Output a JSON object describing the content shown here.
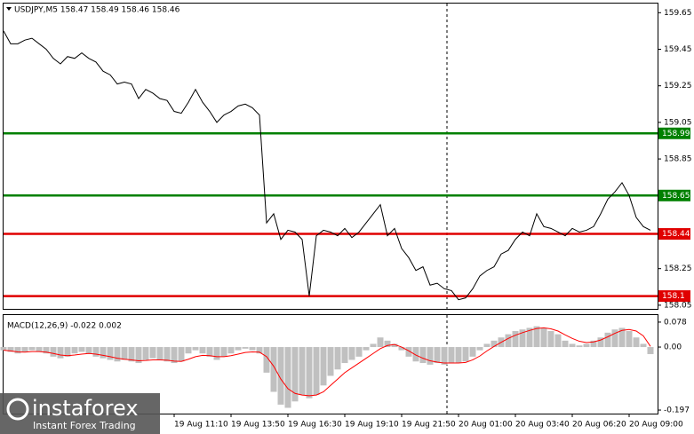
{
  "chart_data": [
    {
      "type": "line",
      "title": "USDJPY,M5  158.47 158.49 158.46 158.46",
      "color": "#000000",
      "categories": [
        null,
        null,
        null,
        null,
        null,
        null,
        null,
        null,
        null,
        null,
        null,
        null,
        null,
        null,
        null,
        null,
        null,
        null,
        null,
        null,
        null,
        null,
        null,
        null,
        "19 Aug 11:10",
        null,
        null,
        null,
        null,
        null,
        null,
        null,
        "19 Aug 13:50",
        null,
        null,
        null,
        null,
        null,
        null,
        null,
        "19 Aug 16:30",
        null,
        null,
        null,
        null,
        null,
        null,
        null,
        "19 Aug 19:10",
        null,
        null,
        null,
        null,
        null,
        null,
        null,
        "19 Aug 21:50",
        null,
        null,
        null,
        null,
        null,
        null,
        null,
        "20 Aug 01:00",
        null,
        null,
        null,
        null,
        null,
        null,
        null,
        "20 Aug 03:40",
        null,
        null,
        null,
        null,
        null,
        null,
        null,
        "20 Aug 06:20",
        null,
        null,
        null,
        null,
        null,
        null,
        null,
        "20 Aug 09:00",
        null,
        null,
        null
      ],
      "values": [
        159.55,
        159.48,
        159.48,
        159.5,
        159.51,
        159.48,
        159.45,
        159.4,
        159.37,
        159.41,
        159.4,
        159.43,
        159.4,
        159.38,
        159.33,
        159.31,
        159.26,
        159.27,
        159.26,
        159.18,
        159.23,
        159.21,
        159.18,
        159.17,
        159.11,
        159.1,
        159.16,
        159.23,
        159.16,
        159.11,
        159.05,
        159.09,
        159.11,
        159.14,
        159.15,
        159.13,
        159.09,
        158.5,
        158.55,
        158.41,
        158.46,
        158.45,
        158.41,
        158.1,
        158.43,
        158.46,
        158.45,
        158.43,
        158.47,
        158.42,
        158.45,
        158.5,
        158.55,
        158.6,
        158.43,
        158.47,
        158.36,
        158.31,
        158.24,
        158.26,
        158.16,
        158.17,
        158.14,
        158.13,
        158.08,
        158.09,
        158.14,
        158.21,
        158.24,
        158.26,
        158.33,
        158.35,
        158.41,
        158.45,
        158.43,
        158.55,
        158.48,
        158.47,
        158.45,
        158.43,
        158.47,
        158.45,
        158.46,
        158.48,
        158.55,
        158.63,
        158.67,
        158.72,
        158.65,
        158.53,
        158.48,
        158.46
      ],
      "ylim": [
        158.03,
        159.7
      ],
      "yticks": [
        159.65,
        159.45,
        159.25,
        159.05,
        158.85,
        158.25,
        158.05
      ],
      "levels": [
        {
          "value": 158.99,
          "color": "#008000"
        },
        {
          "value": 158.65,
          "color": "#008000"
        },
        {
          "value": 158.44,
          "color": "#e00000"
        },
        {
          "value": 158.1,
          "color": "#e00000"
        }
      ]
    },
    {
      "type": "macd",
      "title": "MACD(12,26,9) -0.022 0.002",
      "color": "#c0c0c0",
      "signal_color": "#ff0000",
      "values": [
        -0.01,
        -0.015,
        -0.02,
        -0.015,
        -0.01,
        -0.015,
        -0.02,
        -0.03,
        -0.035,
        -0.03,
        -0.02,
        -0.015,
        -0.02,
        -0.03,
        -0.035,
        -0.04,
        -0.045,
        -0.04,
        -0.045,
        -0.05,
        -0.04,
        -0.035,
        -0.04,
        -0.045,
        -0.05,
        -0.045,
        -0.02,
        -0.01,
        -0.02,
        -0.03,
        -0.04,
        -0.03,
        -0.02,
        -0.01,
        -0.005,
        -0.01,
        -0.02,
        -0.08,
        -0.14,
        -0.18,
        -0.19,
        -0.17,
        -0.15,
        -0.16,
        -0.15,
        -0.12,
        -0.09,
        -0.07,
        -0.05,
        -0.04,
        -0.03,
        -0.01,
        0.01,
        0.03,
        0.02,
        0.01,
        -0.01,
        -0.03,
        -0.045,
        -0.05,
        -0.055,
        -0.05,
        -0.055,
        -0.05,
        -0.05,
        -0.045,
        -0.03,
        -0.01,
        0.01,
        0.02,
        0.03,
        0.04,
        0.05,
        0.055,
        0.06,
        0.065,
        0.06,
        0.05,
        0.04,
        0.02,
        0.01,
        0.005,
        0.01,
        0.02,
        0.03,
        0.045,
        0.055,
        0.06,
        0.05,
        0.03,
        0.01,
        -0.022
      ],
      "signal": [
        -0.01,
        -0.012,
        -0.015,
        -0.016,
        -0.014,
        -0.014,
        -0.016,
        -0.02,
        -0.025,
        -0.027,
        -0.025,
        -0.022,
        -0.02,
        -0.022,
        -0.026,
        -0.03,
        -0.035,
        -0.038,
        -0.04,
        -0.043,
        -0.042,
        -0.04,
        -0.04,
        -0.041,
        -0.044,
        -0.045,
        -0.038,
        -0.03,
        -0.026,
        -0.027,
        -0.03,
        -0.03,
        -0.027,
        -0.022,
        -0.017,
        -0.015,
        -0.016,
        -0.03,
        -0.06,
        -0.1,
        -0.13,
        -0.145,
        -0.15,
        -0.152,
        -0.15,
        -0.14,
        -0.12,
        -0.1,
        -0.08,
        -0.065,
        -0.05,
        -0.035,
        -0.02,
        -0.005,
        0.005,
        0.008,
        0.0,
        -0.012,
        -0.025,
        -0.035,
        -0.043,
        -0.047,
        -0.05,
        -0.05,
        -0.05,
        -0.048,
        -0.04,
        -0.028,
        -0.012,
        0.002,
        0.015,
        0.027,
        0.037,
        0.045,
        0.052,
        0.058,
        0.06,
        0.057,
        0.05,
        0.038,
        0.027,
        0.018,
        0.014,
        0.016,
        0.022,
        0.032,
        0.043,
        0.052,
        0.055,
        0.05,
        0.035,
        0.002
      ],
      "ylim": [
        -0.208,
        0.1
      ],
      "yticks": [
        0.078,
        {
          "value": 0,
          "label": "0.00"
        },
        -0.197
      ]
    }
  ],
  "watermark": {
    "brand": "instaforex",
    "tagline": "Instant Forex Trading"
  }
}
